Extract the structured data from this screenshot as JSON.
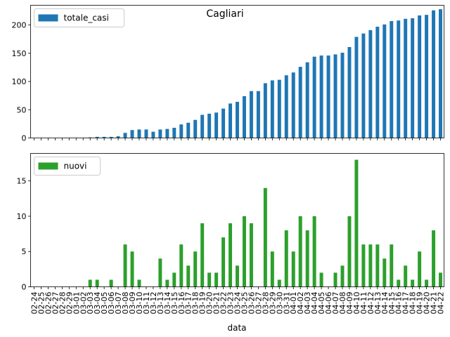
{
  "chart_data": {
    "type": "bar",
    "title": "Cagliari",
    "xlabel": "data",
    "categories": [
      "02-24",
      "02-25",
      "02-26",
      "02-27",
      "02-28",
      "02-29",
      "03-01",
      "03-02",
      "03-03",
      "03-04",
      "03-05",
      "03-06",
      "03-07",
      "03-08",
      "03-09",
      "03-10",
      "03-11",
      "03-12",
      "03-13",
      "03-14",
      "03-15",
      "03-16",
      "03-17",
      "03-18",
      "03-19",
      "03-20",
      "03-21",
      "03-22",
      "03-23",
      "03-24",
      "03-25",
      "03-26",
      "03-27",
      "03-28",
      "03-29",
      "03-30",
      "03-31",
      "04-01",
      "04-02",
      "04-03",
      "04-04",
      "04-05",
      "04-06",
      "04-07",
      "04-08",
      "04-09",
      "04-10",
      "04-11",
      "04-12",
      "04-13",
      "04-14",
      "04-15",
      "04-16",
      "04-17",
      "04-18",
      "04-19",
      "04-20",
      "04-21",
      "04-22"
    ],
    "panels": [
      {
        "series": [
          {
            "name": "totale_casi",
            "color": "#1f77b4",
            "values": [
              0,
              0,
              0,
              0,
              0,
              0,
              0,
              0,
              1,
              2,
              2,
              2,
              3,
              9,
              14,
              15,
              15,
              11,
              15,
              16,
              18,
              24,
              27,
              32,
              41,
              43,
              45,
              52,
              61,
              64,
              74,
              83,
              83,
              97,
              102,
              103,
              111,
              116,
              126,
              134,
              144,
              146,
              146,
              148,
              151,
              161,
              179,
              185,
              191,
              197,
              201,
              207,
              208,
              211,
              212,
              217,
              218,
              226,
              228
            ]
          }
        ],
        "ylim": [
          0,
          235
        ],
        "yticks": [
          0,
          50,
          100,
          150,
          200
        ],
        "legend_position": "upper-left",
        "show_title": true
      },
      {
        "series": [
          {
            "name": "nuovi",
            "color": "#2ca02c",
            "values": [
              0,
              0,
              0,
              0,
              0,
              0,
              0,
              0,
              1,
              1,
              0,
              1,
              0,
              6,
              5,
              1,
              0,
              0,
              4,
              1,
              2,
              6,
              3,
              5,
              9,
              2,
              2,
              7,
              9,
              3,
              10,
              9,
              0,
              14,
              5,
              1,
              8,
              5,
              10,
              8,
              10,
              2,
              0,
              2,
              3,
              10,
              18,
              6,
              6,
              6,
              4,
              6,
              1,
              3,
              1,
              5,
              1,
              8,
              2
            ]
          }
        ],
        "ylim": [
          0,
          18.9
        ],
        "yticks": [
          0,
          5,
          10,
          15
        ],
        "legend_position": "upper-left",
        "show_title": false
      }
    ]
  }
}
